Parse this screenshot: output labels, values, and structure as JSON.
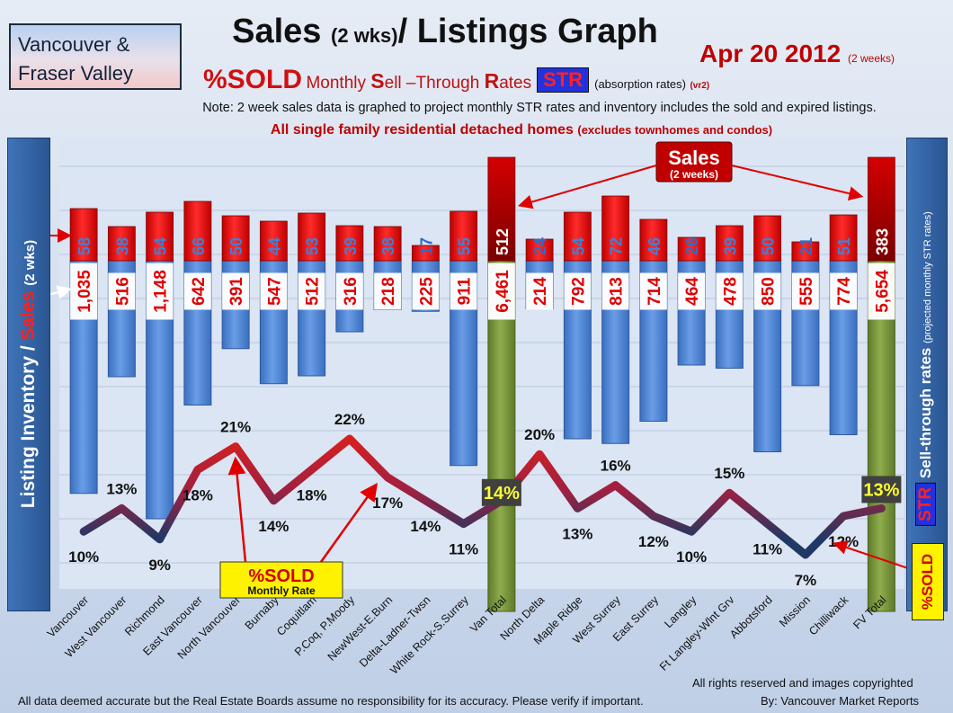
{
  "header": {
    "region_line1": "Vancouver &",
    "region_line2": "Fraser Valley",
    "title_main": "Sales",
    "title_paren": "(2 wks)",
    "title_rest": "/ Listings Graph",
    "date": "Apr 20 2012",
    "date_note": "(2 weeks)",
    "sold_label": "%SOLD",
    "monthly_label": "Monthly",
    "s_letter": "S",
    "ell": "ell",
    "dash_t": "–T",
    "hrough": "hrough",
    "r_letter": "R",
    "ates": "ates",
    "str_badge": "STR",
    "absorption": "(absorption rates)",
    "version": "(vr2)",
    "note": "Note: 2 week sales data is graphed to project monthly STR rates and inventory includes the sold and expired listings.",
    "scope_main": "All single family residential detached homes",
    "scope_sub": "(excludes townhomes and condos)"
  },
  "left_axis": {
    "part1": "Listing Inventory /",
    "part2": "Sales",
    "part3": "(2 wks)"
  },
  "right_axis": {
    "badge": "STR",
    "label": "Sell-through rates",
    "sub": "(projected monthly STR rates)",
    "sold_tag": "%SOLD"
  },
  "annotations": {
    "sales_callout_title": "Sales",
    "sales_callout_sub": "(2 weeks)",
    "sold_callout_title": "%SOLD",
    "sold_callout_sub": "Monthly Rate"
  },
  "footer": {
    "rights": "All rights reserved and  images copyrighted",
    "disclaimer": "All data deemed accurate but the Real Estate Boards assume no responsibility for its accuracy.  Please verify if important.",
    "credit": "By: Vancouver Market Reports"
  },
  "colors": {
    "sales_bar": "#e60000",
    "sales_bar_total": "#a80000",
    "inventory_bar": "#4f86d6",
    "total_bar": "#76923c",
    "line_low": "#1f3864",
    "line_high": "#d42020"
  },
  "chart_data": {
    "type": "bar",
    "categories": [
      "Vancouver",
      "West Vancouver",
      "Richmond",
      "East Vancouver",
      "North Vancouver",
      "Burnaby",
      "Coquitlam",
      "P.Coq, P.Moody",
      "NewWest-E.Burn",
      "Delta-Ladner-Twsn",
      "White Rock-S.Surrey",
      "Van Total",
      "North Delta",
      "Maple Ridge",
      "West Surrey",
      "East Surrey",
      "Langley",
      "Ft Langley-Wlnt Grv",
      "Abbotsford",
      "Mission",
      "Chilliwack",
      "FV Total"
    ],
    "series": [
      {
        "name": "Sales",
        "values": [
          58,
          38,
          54,
          66,
          50,
          44,
          53,
          39,
          38,
          17,
          55,
          512,
          24,
          54,
          72,
          46,
          26,
          39,
          50,
          21,
          51,
          383
        ]
      },
      {
        "name": "Listing Inventory",
        "values": [
          1035,
          516,
          1148,
          642,
          391,
          547,
          512,
          316,
          218,
          225,
          911,
          6461,
          214,
          792,
          813,
          714,
          464,
          478,
          850,
          555,
          774,
          5654
        ]
      },
      {
        "name": "%SOLD",
        "values": [
          10,
          13,
          9,
          18,
          21,
          14,
          18,
          22,
          17,
          14,
          11,
          14,
          20,
          13,
          16,
          12,
          10,
          15,
          11,
          7,
          12,
          13
        ]
      }
    ],
    "sales_labels": [
      "58",
      "38",
      "54",
      "66",
      "50",
      "44",
      "53",
      "39",
      "38",
      "17",
      "55",
      "512",
      "24",
      "54",
      "72",
      "46",
      "26",
      "39",
      "50",
      "21",
      "51",
      "383"
    ],
    "inventory_labels": [
      "1,035",
      "516",
      "1,148",
      "642",
      "391",
      "547",
      "512",
      "316",
      "218",
      "225",
      "911",
      "6,461",
      "214",
      "792",
      "813",
      "714",
      "464",
      "478",
      "850",
      "555",
      "774",
      "5,654"
    ],
    "pct_labels": [
      "10%",
      "13%",
      "9%",
      "18%",
      "21%",
      "14%",
      "18%",
      "22%",
      "17%",
      "14%",
      "11%",
      "14%",
      "20%",
      "13%",
      "16%",
      "12%",
      "10%",
      "15%",
      "11%",
      "7%",
      "12%",
      "13%"
    ],
    "total_indices": [
      11,
      21
    ],
    "grid": true
  }
}
